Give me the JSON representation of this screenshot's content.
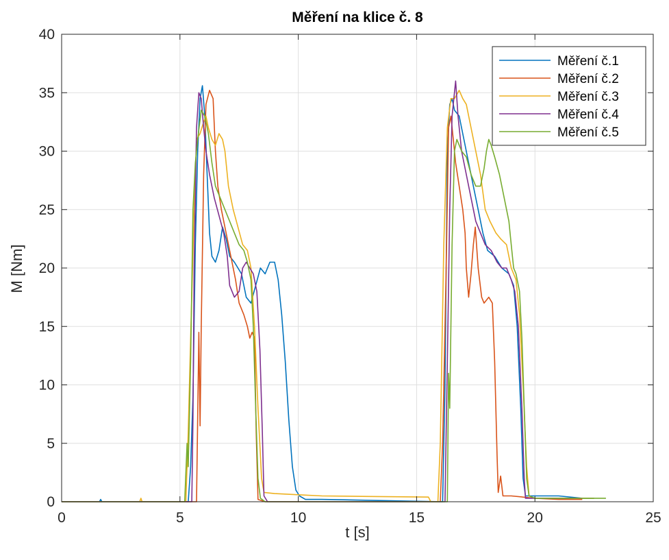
{
  "chart_data": {
    "type": "line",
    "title": "Měření na klice č. 8",
    "xlabel": "t [s]",
    "ylabel": "M [Nm]",
    "xlim": [
      0,
      25
    ],
    "ylim": [
      0,
      40
    ],
    "xticks": [
      0,
      5,
      10,
      15,
      20,
      25
    ],
    "yticks": [
      0,
      5,
      10,
      15,
      20,
      25,
      30,
      35,
      40
    ],
    "xtick_labels": [
      "0",
      "5",
      "10",
      "15",
      "20",
      "25"
    ],
    "ytick_labels": [
      "0",
      "5",
      "10",
      "15",
      "20",
      "25",
      "30",
      "35",
      "40"
    ],
    "grid": true,
    "legend_position": "top-right",
    "series": [
      {
        "name": "Měření č.1",
        "color": "#0072BD",
        "points": [
          [
            0,
            0
          ],
          [
            1.6,
            0
          ],
          [
            1.65,
            0.2
          ],
          [
            1.7,
            0
          ],
          [
            5.35,
            0
          ],
          [
            5.45,
            3
          ],
          [
            5.55,
            9
          ],
          [
            5.65,
            22
          ],
          [
            5.75,
            30
          ],
          [
            5.85,
            34.5
          ],
          [
            5.95,
            35.6
          ],
          [
            6.05,
            33
          ],
          [
            6.15,
            28
          ],
          [
            6.25,
            23
          ],
          [
            6.35,
            21
          ],
          [
            6.5,
            20.5
          ],
          [
            6.65,
            21.5
          ],
          [
            6.8,
            23.5
          ],
          [
            6.95,
            22.5
          ],
          [
            7.1,
            21
          ],
          [
            7.3,
            20.5
          ],
          [
            7.6,
            19.5
          ],
          [
            7.8,
            17.5
          ],
          [
            8.0,
            17
          ],
          [
            8.2,
            18.5
          ],
          [
            8.4,
            20
          ],
          [
            8.6,
            19.5
          ],
          [
            8.8,
            20.5
          ],
          [
            9.0,
            20.5
          ],
          [
            9.15,
            19
          ],
          [
            9.3,
            16
          ],
          [
            9.45,
            12
          ],
          [
            9.6,
            7
          ],
          [
            9.75,
            3
          ],
          [
            9.9,
            1
          ],
          [
            10.05,
            0.5
          ],
          [
            10.3,
            0.2
          ],
          [
            11.0,
            0.2
          ],
          [
            16.1,
            0
          ],
          [
            16.2,
            10
          ],
          [
            16.3,
            30
          ],
          [
            16.4,
            34
          ],
          [
            16.5,
            34.5
          ],
          [
            16.6,
            33.5
          ],
          [
            16.8,
            33
          ],
          [
            17.0,
            31
          ],
          [
            17.2,
            29
          ],
          [
            17.4,
            27
          ],
          [
            17.6,
            25
          ],
          [
            17.8,
            23
          ],
          [
            18.0,
            21.5
          ],
          [
            18.3,
            21
          ],
          [
            18.6,
            20
          ],
          [
            18.9,
            19.5
          ],
          [
            19.1,
            18.5
          ],
          [
            19.25,
            15
          ],
          [
            19.4,
            8
          ],
          [
            19.5,
            2
          ],
          [
            19.6,
            0.5
          ],
          [
            20.0,
            0.5
          ],
          [
            21.0,
            0.5
          ],
          [
            22.0,
            0.3
          ],
          [
            22.5,
            0.3
          ]
        ]
      },
      {
        "name": "Měření č.2",
        "color": "#D95319",
        "points": [
          [
            0,
            0
          ],
          [
            5.7,
            0
          ],
          [
            5.8,
            14.5
          ],
          [
            5.85,
            6.5
          ],
          [
            5.9,
            15
          ],
          [
            6.0,
            28
          ],
          [
            6.1,
            34
          ],
          [
            6.25,
            35.2
          ],
          [
            6.4,
            34.5
          ],
          [
            6.5,
            30
          ],
          [
            6.6,
            27
          ],
          [
            6.75,
            25
          ],
          [
            6.95,
            23
          ],
          [
            7.15,
            21
          ],
          [
            7.35,
            19
          ],
          [
            7.5,
            17
          ],
          [
            7.7,
            16
          ],
          [
            7.85,
            15
          ],
          [
            7.95,
            14
          ],
          [
            8.05,
            14.5
          ],
          [
            8.15,
            14
          ],
          [
            8.22,
            6
          ],
          [
            8.3,
            0.2
          ],
          [
            8.6,
            0
          ],
          [
            16.0,
            0
          ],
          [
            16.1,
            5
          ],
          [
            16.25,
            20
          ],
          [
            16.35,
            32
          ],
          [
            16.45,
            33
          ],
          [
            16.55,
            31
          ],
          [
            16.65,
            29
          ],
          [
            16.8,
            27
          ],
          [
            16.95,
            25
          ],
          [
            17.05,
            23
          ],
          [
            17.1,
            20
          ],
          [
            17.2,
            17.5
          ],
          [
            17.3,
            19.5
          ],
          [
            17.4,
            22
          ],
          [
            17.48,
            23.5
          ],
          [
            17.6,
            20
          ],
          [
            17.75,
            17.5
          ],
          [
            17.85,
            17
          ],
          [
            18.05,
            17.5
          ],
          [
            18.2,
            17
          ],
          [
            18.3,
            12
          ],
          [
            18.4,
            4
          ],
          [
            18.45,
            0.8
          ],
          [
            18.55,
            2.2
          ],
          [
            18.65,
            0.5
          ],
          [
            19.0,
            0.5
          ],
          [
            20.0,
            0.3
          ],
          [
            21.0,
            0.2
          ],
          [
            22.0,
            0.2
          ]
        ]
      },
      {
        "name": "Měření č.3",
        "color": "#EDB120",
        "points": [
          [
            0,
            0
          ],
          [
            3.3,
            0
          ],
          [
            3.35,
            0.3
          ],
          [
            3.4,
            0
          ],
          [
            5.25,
            0
          ],
          [
            5.35,
            6
          ],
          [
            5.45,
            14
          ],
          [
            5.6,
            25
          ],
          [
            5.7,
            31
          ],
          [
            5.85,
            31.5
          ],
          [
            6.0,
            32.5
          ],
          [
            6.1,
            33
          ],
          [
            6.2,
            32
          ],
          [
            6.35,
            31
          ],
          [
            6.5,
            30.5
          ],
          [
            6.65,
            31.5
          ],
          [
            6.8,
            31
          ],
          [
            6.9,
            30
          ],
          [
            7.05,
            27
          ],
          [
            7.25,
            25
          ],
          [
            7.45,
            23.5
          ],
          [
            7.65,
            22
          ],
          [
            7.85,
            21.5
          ],
          [
            8.0,
            20
          ],
          [
            8.15,
            15
          ],
          [
            8.3,
            8
          ],
          [
            8.45,
            2
          ],
          [
            8.55,
            0.8
          ],
          [
            9.0,
            0.7
          ],
          [
            10.0,
            0.6
          ],
          [
            11.0,
            0.5
          ],
          [
            13.0,
            0.45
          ],
          [
            15.5,
            0.4
          ],
          [
            15.6,
            0
          ],
          [
            15.9,
            0
          ],
          [
            16.0,
            5
          ],
          [
            16.15,
            22
          ],
          [
            16.3,
            32
          ],
          [
            16.45,
            34.5
          ],
          [
            16.6,
            34.5
          ],
          [
            16.8,
            35.2
          ],
          [
            16.95,
            34.5
          ],
          [
            17.1,
            34
          ],
          [
            17.3,
            32
          ],
          [
            17.5,
            30
          ],
          [
            17.7,
            28
          ],
          [
            17.9,
            25
          ],
          [
            18.1,
            24
          ],
          [
            18.35,
            23
          ],
          [
            18.55,
            22.5
          ],
          [
            18.8,
            22
          ],
          [
            19.0,
            20
          ],
          [
            19.2,
            19
          ],
          [
            19.35,
            16
          ],
          [
            19.5,
            10
          ],
          [
            19.65,
            3
          ],
          [
            19.75,
            0.5
          ],
          [
            20.0,
            0.3
          ],
          [
            21.0,
            0.3
          ],
          [
            22.5,
            0.3
          ]
        ]
      },
      {
        "name": "Měření č.4",
        "color": "#7E2F8E",
        "points": [
          [
            0,
            0
          ],
          [
            5.5,
            0
          ],
          [
            5.55,
            7
          ],
          [
            5.6,
            20
          ],
          [
            5.7,
            32
          ],
          [
            5.8,
            35
          ],
          [
            5.9,
            34.5
          ],
          [
            6.0,
            32
          ],
          [
            6.1,
            30
          ],
          [
            6.25,
            28
          ],
          [
            6.45,
            26
          ],
          [
            6.65,
            24.5
          ],
          [
            6.85,
            23
          ],
          [
            7.0,
            21
          ],
          [
            7.1,
            18.5
          ],
          [
            7.3,
            17.5
          ],
          [
            7.5,
            18
          ],
          [
            7.65,
            20
          ],
          [
            7.8,
            20.5
          ],
          [
            7.95,
            20
          ],
          [
            8.1,
            19.5
          ],
          [
            8.25,
            18
          ],
          [
            8.38,
            13
          ],
          [
            8.48,
            6
          ],
          [
            8.55,
            0.5
          ],
          [
            8.7,
            0
          ],
          [
            16.2,
            0
          ],
          [
            16.3,
            12
          ],
          [
            16.4,
            25
          ],
          [
            16.5,
            33
          ],
          [
            16.65,
            36
          ],
          [
            16.75,
            33
          ],
          [
            16.9,
            30
          ],
          [
            17.1,
            28
          ],
          [
            17.3,
            26
          ],
          [
            17.5,
            24
          ],
          [
            17.7,
            23
          ],
          [
            17.9,
            22
          ],
          [
            18.15,
            21.5
          ],
          [
            18.4,
            20.5
          ],
          [
            18.6,
            20
          ],
          [
            18.8,
            20
          ],
          [
            19.0,
            19
          ],
          [
            19.15,
            18
          ],
          [
            19.3,
            15
          ],
          [
            19.45,
            8
          ],
          [
            19.55,
            2
          ],
          [
            19.6,
            0.3
          ],
          [
            20.0,
            0.3
          ],
          [
            22.0,
            0.3
          ]
        ]
      },
      {
        "name": "Měření č.5",
        "color": "#77AC30",
        "points": [
          [
            0,
            0
          ],
          [
            5.2,
            0
          ],
          [
            5.3,
            5
          ],
          [
            5.35,
            3
          ],
          [
            5.45,
            12
          ],
          [
            5.55,
            25
          ],
          [
            5.65,
            29
          ],
          [
            5.75,
            31
          ],
          [
            5.9,
            33.5
          ],
          [
            6.05,
            33
          ],
          [
            6.2,
            31.5
          ],
          [
            6.35,
            29
          ],
          [
            6.5,
            27
          ],
          [
            6.7,
            26
          ],
          [
            6.9,
            25
          ],
          [
            7.1,
            24
          ],
          [
            7.3,
            23
          ],
          [
            7.5,
            22
          ],
          [
            7.7,
            21.5
          ],
          [
            7.85,
            20.5
          ],
          [
            8.0,
            19
          ],
          [
            8.1,
            15
          ],
          [
            8.2,
            8
          ],
          [
            8.3,
            2
          ],
          [
            8.4,
            0.3
          ],
          [
            8.6,
            0
          ],
          [
            16.3,
            0
          ],
          [
            16.35,
            11
          ],
          [
            16.4,
            8
          ],
          [
            16.5,
            22
          ],
          [
            16.6,
            30
          ],
          [
            16.7,
            31
          ],
          [
            16.9,
            30
          ],
          [
            17.1,
            29.5
          ],
          [
            17.3,
            28
          ],
          [
            17.5,
            27
          ],
          [
            17.7,
            27
          ],
          [
            17.85,
            28.5
          ],
          [
            17.95,
            30
          ],
          [
            18.05,
            31
          ],
          [
            18.15,
            30.5
          ],
          [
            18.3,
            29.5
          ],
          [
            18.5,
            28
          ],
          [
            18.7,
            26
          ],
          [
            18.9,
            24
          ],
          [
            19.0,
            22
          ],
          [
            19.1,
            20
          ],
          [
            19.2,
            19.5
          ],
          [
            19.35,
            18
          ],
          [
            19.45,
            14
          ],
          [
            19.55,
            8
          ],
          [
            19.65,
            2
          ],
          [
            19.75,
            0.5
          ],
          [
            20.0,
            0.3
          ],
          [
            21.0,
            0.3
          ],
          [
            22.0,
            0.3
          ],
          [
            23.0,
            0.3
          ]
        ]
      }
    ]
  }
}
